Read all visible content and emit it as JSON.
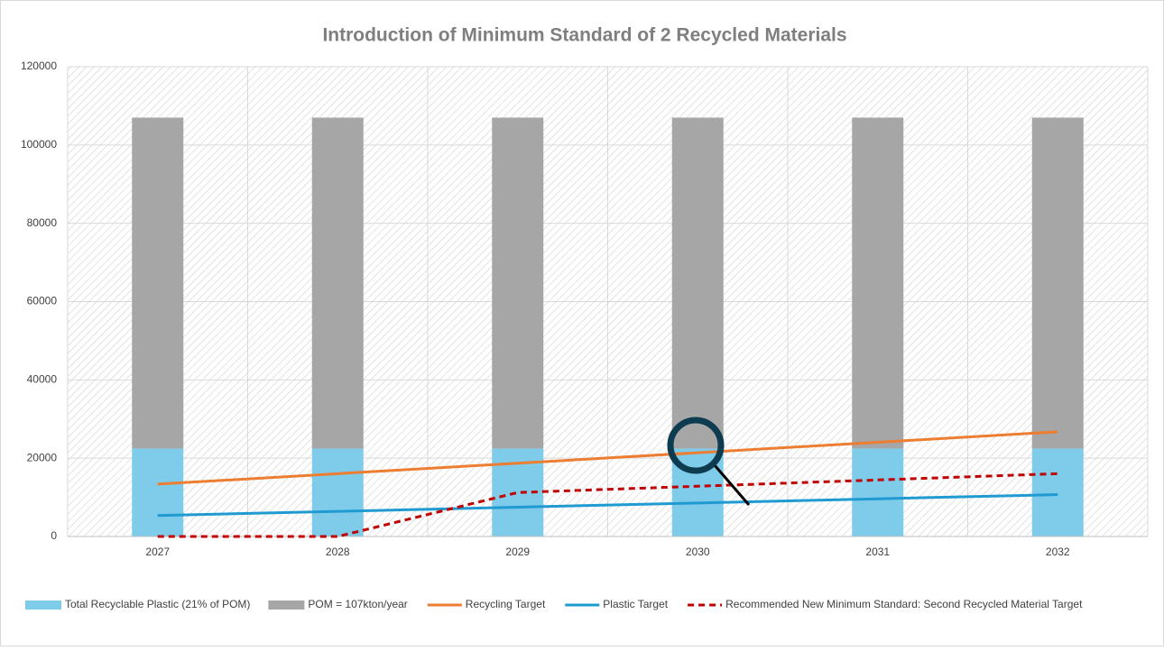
{
  "chart_data": {
    "type": "combo",
    "title": "Introduction of Minimum Standard of 2 Recycled Materials",
    "categories": [
      "2027",
      "2028",
      "2029",
      "2030",
      "2031",
      "2032"
    ],
    "series": [
      {
        "name": "Total Recyclable Plastic (21% of POM)",
        "type": "bar",
        "color": "#7fcbea",
        "values": [
          22470,
          22470,
          22470,
          22470,
          22470,
          22470
        ]
      },
      {
        "name": "POM = 107kton/year",
        "type": "bar",
        "color": "#a6a6a6",
        "values": [
          84530,
          84530,
          84530,
          84530,
          84530,
          84530
        ]
      },
      {
        "name": "Recycling Target",
        "type": "line",
        "color": "#ed7d31",
        "values": [
          13375,
          16050,
          18725,
          21400,
          24075,
          26750
        ]
      },
      {
        "name": "Plastic Target",
        "type": "line",
        "color": "#1f9bd1",
        "values": [
          5350,
          6420,
          7490,
          8560,
          9630,
          10700
        ]
      },
      {
        "name": "Recommended New Minimum Standard: Second Recycled Material Target",
        "type": "line",
        "dash": true,
        "color": "#c00000",
        "values": [
          0,
          0,
          11235,
          12840,
          14445,
          16050
        ]
      }
    ],
    "stacked": true,
    "ylim": [
      0,
      120000
    ],
    "yticks": [
      0,
      20000,
      40000,
      60000,
      80000,
      100000,
      120000
    ],
    "grid": true,
    "legend": "bottom"
  }
}
